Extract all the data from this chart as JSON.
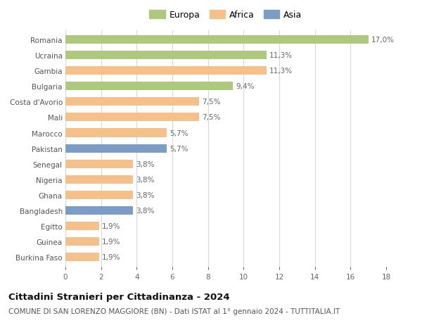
{
  "categories": [
    "Romania",
    "Ucraina",
    "Gambia",
    "Bulgaria",
    "Costa d'Avorio",
    "Mali",
    "Marocco",
    "Pakistan",
    "Senegal",
    "Nigeria",
    "Ghana",
    "Bangladesh",
    "Egitto",
    "Guinea",
    "Burkina Faso"
  ],
  "values": [
    17.0,
    11.3,
    11.3,
    9.4,
    7.5,
    7.5,
    5.7,
    5.7,
    3.8,
    3.8,
    3.8,
    3.8,
    1.9,
    1.9,
    1.9
  ],
  "labels": [
    "17,0%",
    "11,3%",
    "11,3%",
    "9,4%",
    "7,5%",
    "7,5%",
    "5,7%",
    "5,7%",
    "3,8%",
    "3,8%",
    "3,8%",
    "3,8%",
    "1,9%",
    "1,9%",
    "1,9%"
  ],
  "colors": [
    "#adc97e",
    "#adc97e",
    "#f5c08a",
    "#adc97e",
    "#f5c08a",
    "#f5c08a",
    "#f5c08a",
    "#7b9cc4",
    "#f5c08a",
    "#f5c08a",
    "#f5c08a",
    "#7b9cc4",
    "#f5c08a",
    "#f5c08a",
    "#f5c08a"
  ],
  "legend": [
    {
      "label": "Europa",
      "color": "#adc97e"
    },
    {
      "label": "Africa",
      "color": "#f5c08a"
    },
    {
      "label": "Asia",
      "color": "#7b9cc4"
    }
  ],
  "title1": "Cittadini Stranieri per Cittadinanza - 2024",
  "title2": "COMUNE DI SAN LORENZO MAGGIORE (BN) - Dati ISTAT al 1° gennaio 2024 - TUTTITALIA.IT",
  "xlim": [
    0,
    18
  ],
  "xticks": [
    0,
    2,
    4,
    6,
    8,
    10,
    12,
    14,
    16,
    18
  ],
  "background_color": "#ffffff",
  "grid_color": "#d8d8d8",
  "bar_height": 0.55,
  "label_fontsize": 7.5,
  "tick_fontsize": 7.5,
  "ytick_fontsize": 7.5,
  "title1_fontsize": 9.5,
  "title2_fontsize": 7.5
}
